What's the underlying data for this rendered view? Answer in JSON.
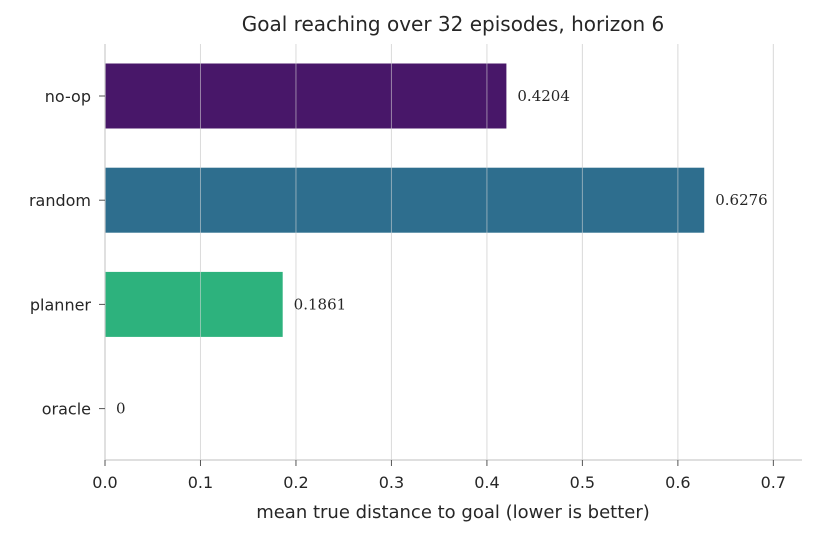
{
  "chart_data": {
    "type": "bar",
    "orientation": "horizontal",
    "title": "Goal reaching over 32 episodes, horizon 6",
    "xlabel": "mean true distance to goal (lower is better)",
    "ylabel": "",
    "categories": [
      "no-op",
      "random",
      "planner",
      "oracle"
    ],
    "values": [
      0.4204,
      0.6276,
      0.1861,
      0
    ],
    "value_labels": [
      "0.4204",
      "0.6276",
      "0.1861",
      "0"
    ],
    "colors": [
      "#481769",
      "#2e6e8e",
      "#2db27d",
      "#fde725"
    ],
    "xlim": [
      0,
      0.73
    ],
    "xticks": [
      0.0,
      0.1,
      0.2,
      0.3,
      0.4,
      0.5,
      0.6,
      0.7
    ],
    "xtick_labels": [
      "0.0",
      "0.1",
      "0.2",
      "0.3",
      "0.4",
      "0.5",
      "0.6",
      "0.7"
    ],
    "grid": "vertical"
  }
}
